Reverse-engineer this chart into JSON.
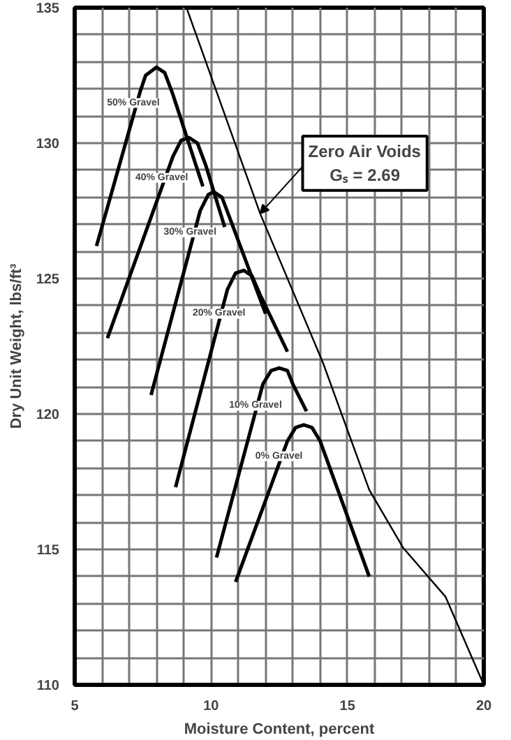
{
  "chart_data": {
    "type": "line",
    "xlabel": "Moisture Content, percent",
    "ylabel": "Dry Unit Weight, lbs/ft³",
    "xlim": [
      5,
      20
    ],
    "ylim": [
      110,
      135
    ],
    "xticks": [
      5,
      {
        "value": 6,
        "label": null
      },
      {
        "value": 7,
        "label": null
      },
      {
        "value": 8,
        "label": null
      },
      {
        "value": 9,
        "label": null
      },
      10,
      {
        "value": 11,
        "label": null
      },
      {
        "value": 12,
        "label": null
      },
      {
        "value": 13,
        "label": null
      },
      {
        "value": 14,
        "label": null
      },
      15,
      {
        "value": 16,
        "label": null
      },
      {
        "value": 17,
        "label": null
      },
      {
        "value": 18,
        "label": null
      },
      {
        "value": 19,
        "label": null
      },
      20
    ],
    "yticks": [
      110,
      {
        "value": 111,
        "label": null
      },
      {
        "value": 112,
        "label": null
      },
      {
        "value": 113,
        "label": null
      },
      {
        "value": 114,
        "label": null
      },
      115,
      {
        "value": 116,
        "label": null
      },
      {
        "value": 117,
        "label": null
      },
      {
        "value": 118,
        "label": null
      },
      {
        "value": 119,
        "label": null
      },
      120,
      {
        "value": 121,
        "label": null
      },
      {
        "value": 122,
        "label": null
      },
      {
        "value": 123,
        "label": null
      },
      {
        "value": 124,
        "label": null
      },
      125,
      {
        "value": 126,
        "label": null
      },
      {
        "value": 127,
        "label": null
      },
      {
        "value": 128,
        "label": null
      },
      {
        "value": 129,
        "label": null
      },
      130,
      {
        "value": 131,
        "label": null
      },
      {
        "value": 132,
        "label": null
      },
      {
        "value": 133,
        "label": null
      },
      {
        "value": 134,
        "label": null
      },
      135
    ],
    "grid": true,
    "marker": "none",
    "line_style": "solid",
    "series": [
      {
        "name": "50% Gravel",
        "color": "#000000",
        "x": [
          5.8,
          7.4,
          7.6,
          8.0,
          8.3,
          8.6,
          9.7
        ],
        "values": [
          126.2,
          131.9,
          132.5,
          132.8,
          132.6,
          131.8,
          128.4
        ]
      },
      {
        "name": "40% Gravel",
        "color": "#000000",
        "x": [
          6.2,
          8.6,
          8.9,
          9.2,
          9.5,
          9.8,
          10.5
        ],
        "values": [
          122.8,
          129.5,
          130.1,
          130.2,
          130.0,
          129.2,
          126.9
        ]
      },
      {
        "name": "30% Gravel",
        "color": "#000000",
        "x": [
          7.8,
          9.6,
          9.9,
          10.1,
          10.4,
          10.7,
          12.0
        ],
        "values": [
          120.7,
          127.5,
          128.1,
          128.2,
          128.0,
          127.2,
          123.7
        ]
      },
      {
        "name": "20% Gravel",
        "color": "#000000",
        "x": [
          8.7,
          10.6,
          10.9,
          11.2,
          11.5,
          11.8,
          12.8
        ],
        "values": [
          117.3,
          124.6,
          125.2,
          125.3,
          125.1,
          124.4,
          122.3
        ]
      },
      {
        "name": "10% Gravel",
        "color": "#000000",
        "x": [
          10.2,
          11.9,
          12.2,
          12.5,
          12.8,
          13.0,
          13.5
        ],
        "values": [
          114.7,
          121.1,
          121.6,
          121.7,
          121.6,
          121.1,
          120.1
        ]
      },
      {
        "name": "0% Gravel",
        "color": "#000000",
        "x": [
          10.9,
          12.8,
          13.1,
          13.4,
          13.7,
          14.0,
          15.8
        ],
        "values": [
          113.8,
          119.0,
          119.5,
          119.6,
          119.5,
          119.0,
          114.0
        ]
      },
      {
        "color": "#000000",
        "x": [
          9.1,
          11.8,
          14.1,
          15.8,
          17.05,
          18.6,
          20.0
        ],
        "values": [
          135.0,
          127.4,
          121.9,
          117.2,
          115.05,
          113.25,
          110.0
        ]
      }
    ],
    "annotations": [
      {
        "text": "Zero Air Voids\nGₛ = 2.69",
        "x": 11.8,
        "y": 127.4
      }
    ]
  }
}
